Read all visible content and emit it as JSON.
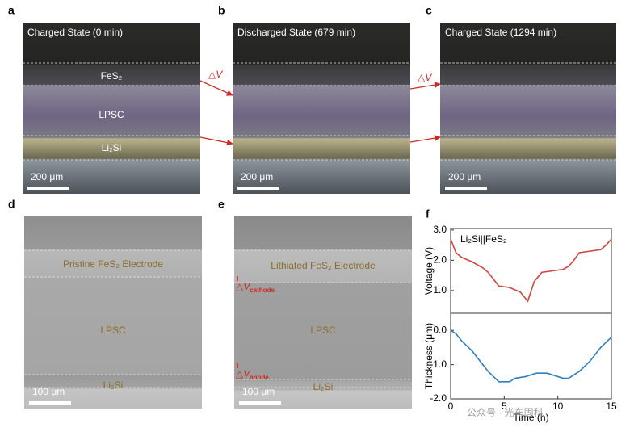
{
  "figure": {
    "panels": [
      {
        "letter": "a",
        "caption": "Charged State (0 min)",
        "scale_bar": "200 μm",
        "layers": [
          "FeS₂",
          "LPSC",
          "Li₂Si"
        ]
      },
      {
        "letter": "b",
        "caption": "Discharged State (679 min)",
        "scale_bar": "200 μm"
      },
      {
        "letter": "c",
        "caption": "Charged State (1294 min)",
        "scale_bar": "200 μm"
      },
      {
        "letter": "d",
        "scale_bar": "100 μm",
        "layers": [
          "Pristine FeS₂ Electrode",
          "LPSC",
          "Li₂Si"
        ]
      },
      {
        "letter": "e",
        "scale_bar": "100 μm",
        "layers": [
          "Lithiated FeS₂ Electrode",
          "LPSC",
          "Li₂Si"
        ],
        "deltas": [
          {
            "symbol": "△V",
            "sub": "cathode"
          },
          {
            "symbol": "△V",
            "sub": "anode"
          }
        ]
      }
    ],
    "arrow_labels": [
      "△V",
      "△V"
    ],
    "chart_letter": "f",
    "watermark": "公众号 · 光车固科"
  },
  "chart_data": [
    {
      "type": "line",
      "annotation": "Li₂Si||FeS₂",
      "y_label": "Voltage (V)",
      "color": "#d0453a",
      "x": [
        0,
        0.5,
        1,
        2,
        3,
        3.5,
        4.5,
        5.5,
        6.5,
        7.2,
        7.8,
        8.5,
        9.5,
        10.5,
        11,
        11.5,
        12,
        13,
        14,
        14.5,
        15
      ],
      "values": [
        2.7,
        2.25,
        2.1,
        1.95,
        1.75,
        1.6,
        1.15,
        1.1,
        0.95,
        0.65,
        1.3,
        1.6,
        1.65,
        1.7,
        1.8,
        2.0,
        2.25,
        2.3,
        2.35,
        2.5,
        2.7
      ],
      "xlim": [
        0,
        15
      ],
      "ylim": [
        0.25,
        3.05
      ],
      "yticks": [
        {
          "value": 1,
          "label": "1.0"
        },
        {
          "value": 2,
          "label": "2.0"
        },
        {
          "value": 3,
          "label": "3.0"
        }
      ]
    },
    {
      "type": "line",
      "y_label": "Thickness (μm)",
      "x_label": "Time (h)",
      "color": "#2f7fc0",
      "x": [
        0,
        0.5,
        1,
        1.5,
        2,
        2.5,
        3,
        3.5,
        4,
        4.5,
        5,
        5.5,
        6,
        7,
        8,
        9,
        10,
        10.5,
        11,
        12,
        13,
        14,
        15
      ],
      "values": [
        0,
        -0.1,
        -0.3,
        -0.45,
        -0.6,
        -0.8,
        -1.0,
        -1.2,
        -1.35,
        -1.5,
        -1.5,
        -1.5,
        -1.4,
        -1.35,
        -1.25,
        -1.25,
        -1.35,
        -1.4,
        -1.4,
        -1.2,
        -0.9,
        -0.5,
        -0.2
      ],
      "xlim": [
        0,
        15
      ],
      "ylim": [
        -2.0,
        0.5
      ],
      "yticks": [
        {
          "value": 0,
          "label": "0.0"
        },
        {
          "value": -1,
          "label": "-1.0"
        },
        {
          "value": -2,
          "label": "-2.0"
        }
      ],
      "xticks": [
        0,
        5,
        10,
        15
      ]
    }
  ]
}
